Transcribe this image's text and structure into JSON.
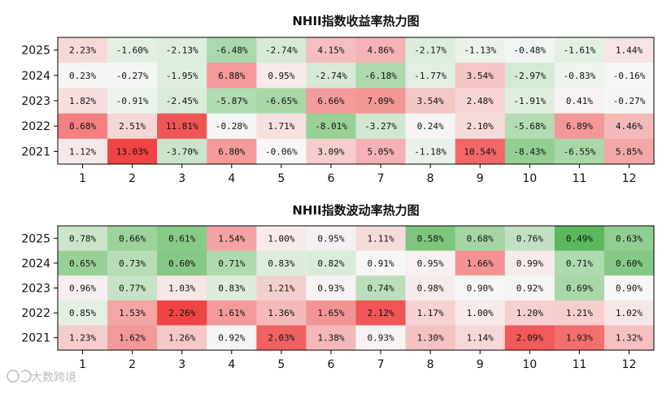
{
  "chart_data": [
    {
      "type": "heatmap",
      "title": "NHII指数收益率热力图",
      "x_categories": [
        "1",
        "2",
        "3",
        "4",
        "5",
        "6",
        "7",
        "8",
        "9",
        "10",
        "11",
        "12"
      ],
      "y_categories": [
        "2025",
        "2024",
        "2023",
        "2022",
        "2021"
      ],
      "values": [
        [
          2.23,
          -1.6,
          -2.13,
          -6.48,
          -2.74,
          4.15,
          4.86,
          -2.17,
          -1.13,
          -0.48,
          -1.61,
          1.44
        ],
        [
          0.23,
          -0.27,
          -1.95,
          6.88,
          0.95,
          -2.74,
          -6.18,
          -1.77,
          3.54,
          -2.97,
          -0.83,
          -0.16
        ],
        [
          1.82,
          -0.91,
          -2.45,
          -5.87,
          -6.65,
          6.66,
          7.09,
          3.54,
          2.48,
          -1.91,
          0.41,
          -0.27
        ],
        [
          8.68,
          2.51,
          11.81,
          -0.28,
          1.71,
          -8.01,
          -3.27,
          0.24,
          2.1,
          -5.68,
          6.89,
          4.46
        ],
        [
          1.12,
          13.03,
          -3.7,
          6.8,
          -0.06,
          3.09,
          5.05,
          -1.18,
          10.54,
          -8.43,
          -6.55,
          5.85
        ]
      ],
      "labels": [
        [
          "2.23%",
          "-1.60%",
          "-2.13%",
          "-6.48%",
          "-2.74%",
          "4.15%",
          "4.86%",
          "-2.17%",
          "-1.13%",
          "-0.48%",
          "-1.61%",
          "1.44%"
        ],
        [
          "0.23%",
          "-0.27%",
          "-1.95%",
          "6.88%",
          "0.95%",
          "-2.74%",
          "-6.18%",
          "-1.77%",
          "3.54%",
          "-2.97%",
          "-0.83%",
          "-0.16%"
        ],
        [
          "1.82%",
          "-0.91%",
          "-2.45%",
          "-5.87%",
          "-6.65%",
          "6.66%",
          "7.09%",
          "3.54%",
          "2.48%",
          "-1.91%",
          "0.41%",
          "-0.27%"
        ],
        [
          "8.68%",
          "2.51%",
          "11.81%",
          "-0.28%",
          "1.71%",
          "-8.01%",
          "-3.27%",
          "0.24%",
          "2.10%",
          "-5.68%",
          "6.89%",
          "4.46%"
        ],
        [
          "1.12%",
          "13.03%",
          "-3.70%",
          "6.80%",
          "-0.06%",
          "3.09%",
          "5.05%",
          "-1.18%",
          "10.54%",
          "-8.43%",
          "-6.55%",
          "5.85%"
        ]
      ],
      "colormap": {
        "negative": "#5cb85c",
        "zero": "#f7f7f7",
        "positive": "#ef4444"
      },
      "color_range": [
        -13.03,
        13.03
      ]
    },
    {
      "type": "heatmap",
      "title": "NHII指数波动率热力图",
      "x_categories": [
        "1",
        "2",
        "3",
        "4",
        "5",
        "6",
        "7",
        "8",
        "9",
        "10",
        "11",
        "12"
      ],
      "y_categories": [
        "2025",
        "2024",
        "2023",
        "2022",
        "2021"
      ],
      "values": [
        [
          0.78,
          0.66,
          0.61,
          1.54,
          1.0,
          0.95,
          1.11,
          0.58,
          0.68,
          0.76,
          0.49,
          0.63
        ],
        [
          0.65,
          0.73,
          0.6,
          0.71,
          0.83,
          0.82,
          0.91,
          0.95,
          1.66,
          0.99,
          0.71,
          0.6
        ],
        [
          0.96,
          0.77,
          1.03,
          0.83,
          1.21,
          0.93,
          0.74,
          0.98,
          0.9,
          0.92,
          0.69,
          0.9
        ],
        [
          0.85,
          1.53,
          2.26,
          1.61,
          1.36,
          1.65,
          2.12,
          1.17,
          1.0,
          1.2,
          1.21,
          1.02
        ],
        [
          1.23,
          1.62,
          1.26,
          0.92,
          2.03,
          1.38,
          0.93,
          1.3,
          1.14,
          2.09,
          1.93,
          1.32
        ]
      ],
      "labels": [
        [
          "0.78%",
          "0.66%",
          "0.61%",
          "1.54%",
          "1.00%",
          "0.95%",
          "1.11%",
          "0.58%",
          "0.68%",
          "0.76%",
          "0.49%",
          "0.63%"
        ],
        [
          "0.65%",
          "0.73%",
          "0.60%",
          "0.71%",
          "0.83%",
          "0.82%",
          "0.91%",
          "0.95%",
          "1.66%",
          "0.99%",
          "0.71%",
          "0.60%"
        ],
        [
          "0.96%",
          "0.77%",
          "1.03%",
          "0.83%",
          "1.21%",
          "0.93%",
          "0.74%",
          "0.98%",
          "0.90%",
          "0.92%",
          "0.69%",
          "0.90%"
        ],
        [
          "0.85%",
          "1.53%",
          "2.26%",
          "1.61%",
          "1.36%",
          "1.65%",
          "2.12%",
          "1.17%",
          "1.00%",
          "1.20%",
          "1.21%",
          "1.02%"
        ],
        [
          "1.23%",
          "1.62%",
          "1.26%",
          "0.92%",
          "2.03%",
          "1.38%",
          "0.93%",
          "1.30%",
          "1.14%",
          "2.09%",
          "1.93%",
          "1.32%"
        ]
      ],
      "colormap": {
        "negative": "#5cb85c",
        "zero": "#f7f7f7",
        "positive": "#ef4444"
      },
      "color_center": 0.9,
      "color_range": [
        0.49,
        2.26
      ]
    }
  ],
  "watermark": {
    "text": "大数跨境"
  }
}
